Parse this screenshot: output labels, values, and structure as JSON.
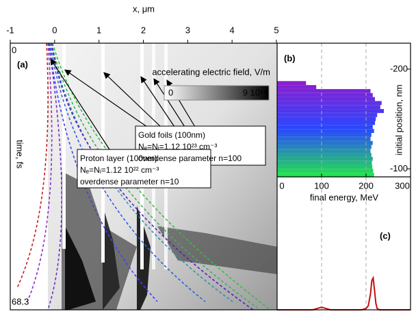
{
  "chart_data": [
    {
      "type": "field-map",
      "label": "(a)",
      "xlabel": "x, μm",
      "xlim": [
        -1,
        5
      ],
      "xticks": [
        -1,
        0,
        1,
        2,
        3,
        4,
        5
      ],
      "ylabel": "time, fs",
      "ylim": [
        0,
        68.3
      ],
      "yticks": [
        0,
        68.3
      ],
      "colorbar": {
        "title": "accelerating electric field, V/m",
        "lim": [
          0,
          900000000000000.0
        ],
        "ticks": [
          0,
          {
            "value": 900000000000000.0,
            "label": "9 10¹⁴"
          }
        ]
      },
      "annotations": [
        {
          "lines": [
            "Gold foils (100nm)",
            "Nₑ=Nᵢ=1.12 10²³ cm⁻³",
            "overdense parameter n=100"
          ]
        },
        {
          "lines": [
            "Proton layer (100nm)",
            "Nₑ=Nᵢ=1.12 10²² cm⁻³",
            "overdense parameter n=10"
          ]
        }
      ]
    },
    {
      "type": "hbar-histogram",
      "label": "(b)",
      "ylabel": "initial position, nm",
      "xlabel": "final energy, MeV",
      "xlim": [
        0,
        300
      ],
      "xticks": [
        0,
        100,
        200,
        300
      ],
      "ylim": [
        -226,
        -92
      ],
      "yticks": [
        -200,
        -100
      ],
      "bins": [
        -188,
        -184,
        -180,
        -176,
        -172,
        -168,
        -164,
        -160,
        -156,
        -152,
        -148,
        -144,
        -140,
        -136,
        -132,
        -128,
        -124,
        -120,
        -116,
        -112,
        -108,
        -104,
        -100,
        -96,
        -92
      ],
      "values": [
        65,
        88,
        210,
        215,
        220,
        235,
        232,
        240,
        225,
        222,
        220,
        215,
        218,
        212,
        210,
        215,
        212,
        210,
        212,
        215,
        213,
        214,
        216,
        218
      ],
      "color_stops": [
        "#8a1fd0",
        "#2848ff",
        "#22e050"
      ],
      "grid": true
    },
    {
      "type": "line",
      "label": "(c)",
      "xlim": [
        0,
        300
      ],
      "xticks": [
        0,
        100,
        200,
        300
      ],
      "ylim": [
        0,
        1
      ],
      "grid": true,
      "color": "#c01010",
      "x": [
        0,
        20,
        40,
        60,
        80,
        90,
        100,
        110,
        120,
        140,
        160,
        180,
        190,
        200,
        205,
        210,
        213,
        216,
        219,
        222,
        225,
        230,
        240,
        260,
        280,
        300
      ],
      "values": [
        0,
        0,
        0,
        0,
        0,
        0.01,
        0.02,
        0.01,
        0,
        0,
        0,
        0,
        0,
        0.01,
        0.03,
        0.12,
        0.22,
        0.24,
        0.15,
        0.05,
        0.01,
        0,
        0,
        0,
        0,
        0
      ]
    }
  ]
}
